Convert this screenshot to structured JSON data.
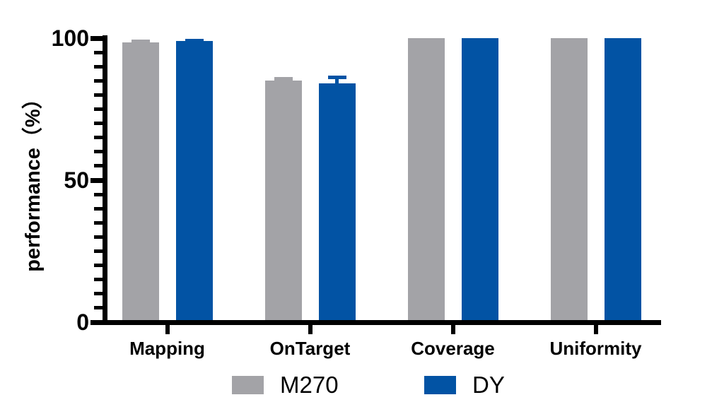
{
  "figure": {
    "background": "#ffffff"
  },
  "chart_data": {
    "type": "bar",
    "title": "",
    "categories": [
      "Mapping",
      "OnTarget",
      "Coverage",
      "Uniformity"
    ],
    "series": [
      {
        "name": "M270",
        "color": "#a3a3a7",
        "values": [
          98.6,
          85.0,
          100,
          100
        ],
        "errors_plus": [
          0.8,
          1.2,
          0,
          0
        ]
      },
      {
        "name": "DY",
        "color": "#0253a4",
        "values": [
          99.0,
          84.2,
          100,
          100
        ],
        "errors_plus": [
          0.7,
          2.5,
          0,
          0
        ]
      }
    ],
    "xlabel": "",
    "ylabel": "performance（%）",
    "ylim": [
      0,
      100
    ],
    "yticks": [
      {
        "value": 0,
        "label": "0"
      },
      {
        "value": 50,
        "label": "50"
      },
      {
        "value": 100,
        "label": "100"
      }
    ],
    "ytick_minor_step": 5,
    "grid": false,
    "legend_position": "bottom",
    "axis_color": "#000000",
    "error_bars": "upper only, colored same as bar fill"
  }
}
